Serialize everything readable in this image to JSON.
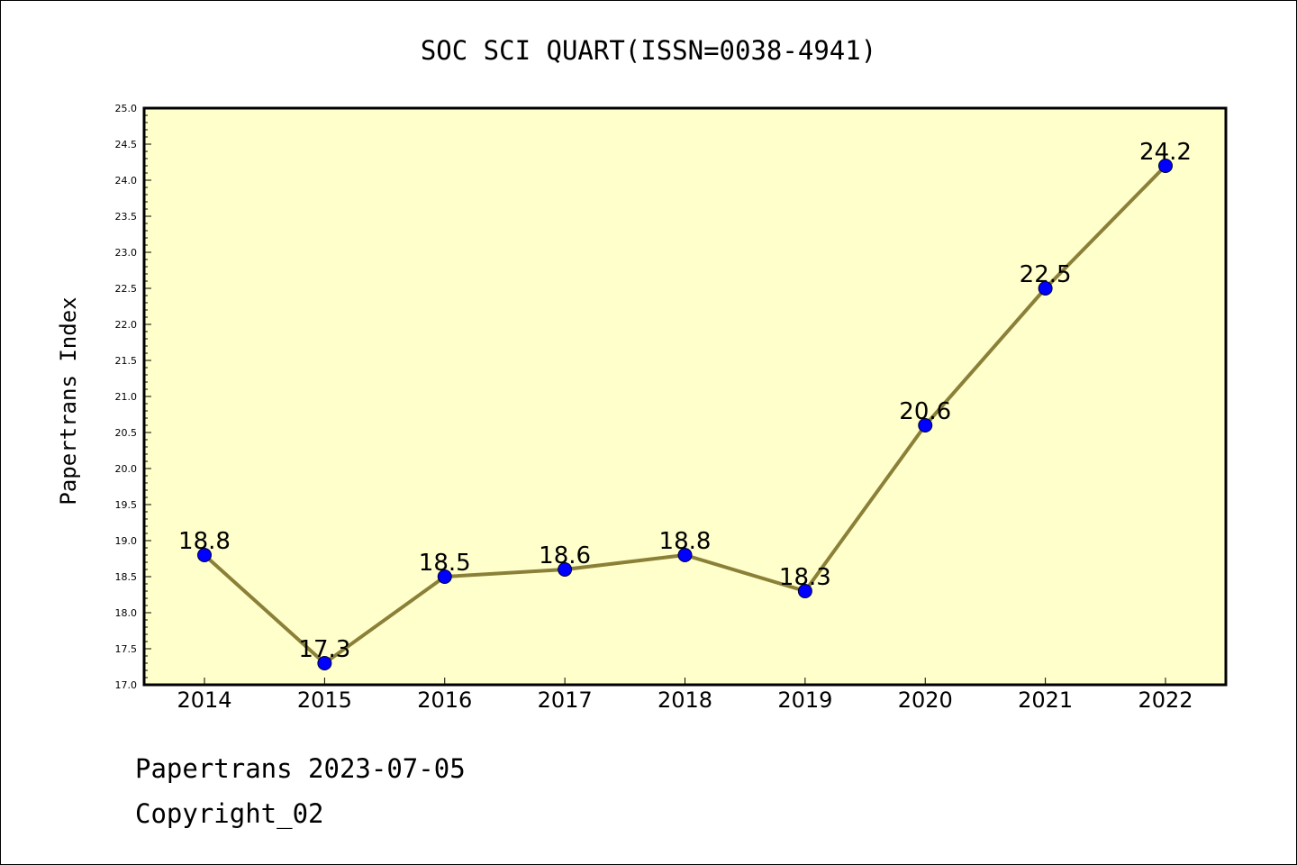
{
  "colors": {
    "plot_background": "#ffffcc",
    "line": "#8b8038",
    "marker_fill": "#0000ff",
    "marker_edge": "#000033",
    "axes": "#000000"
  },
  "chart_data": {
    "type": "line",
    "title": "SOC SCI QUART(ISSN=0038-4941)",
    "xlabel": "",
    "ylabel": "Papertrans Index",
    "categories": [
      "2014",
      "2015",
      "2016",
      "2017",
      "2018",
      "2019",
      "2020",
      "2021",
      "2022"
    ],
    "series": [
      {
        "values": [
          18.8,
          17.3,
          18.5,
          18.6,
          18.8,
          18.3,
          20.6,
          22.5,
          24.2
        ],
        "data_labels": [
          "18.8",
          "17.3",
          "18.5",
          "18.6",
          "18.8",
          "18.3",
          "20.6",
          "22.5",
          "24.2"
        ]
      }
    ],
    "ylim": [
      17.0,
      25.0
    ],
    "y_ticks": [
      "17.0",
      "17.5",
      "18.0",
      "18.5",
      "19.0",
      "19.5",
      "20.0",
      "20.5",
      "21.0",
      "21.5",
      "22.0",
      "22.5",
      "23.0",
      "23.5",
      "24.0",
      "24.5",
      "25.0"
    ],
    "y_minor_step": 0.1,
    "grid": false,
    "legend": "none",
    "markers": "circle"
  },
  "footer": {
    "date_line": "Papertrans 2023-07-05",
    "copyright_line": "Copyright_02"
  }
}
